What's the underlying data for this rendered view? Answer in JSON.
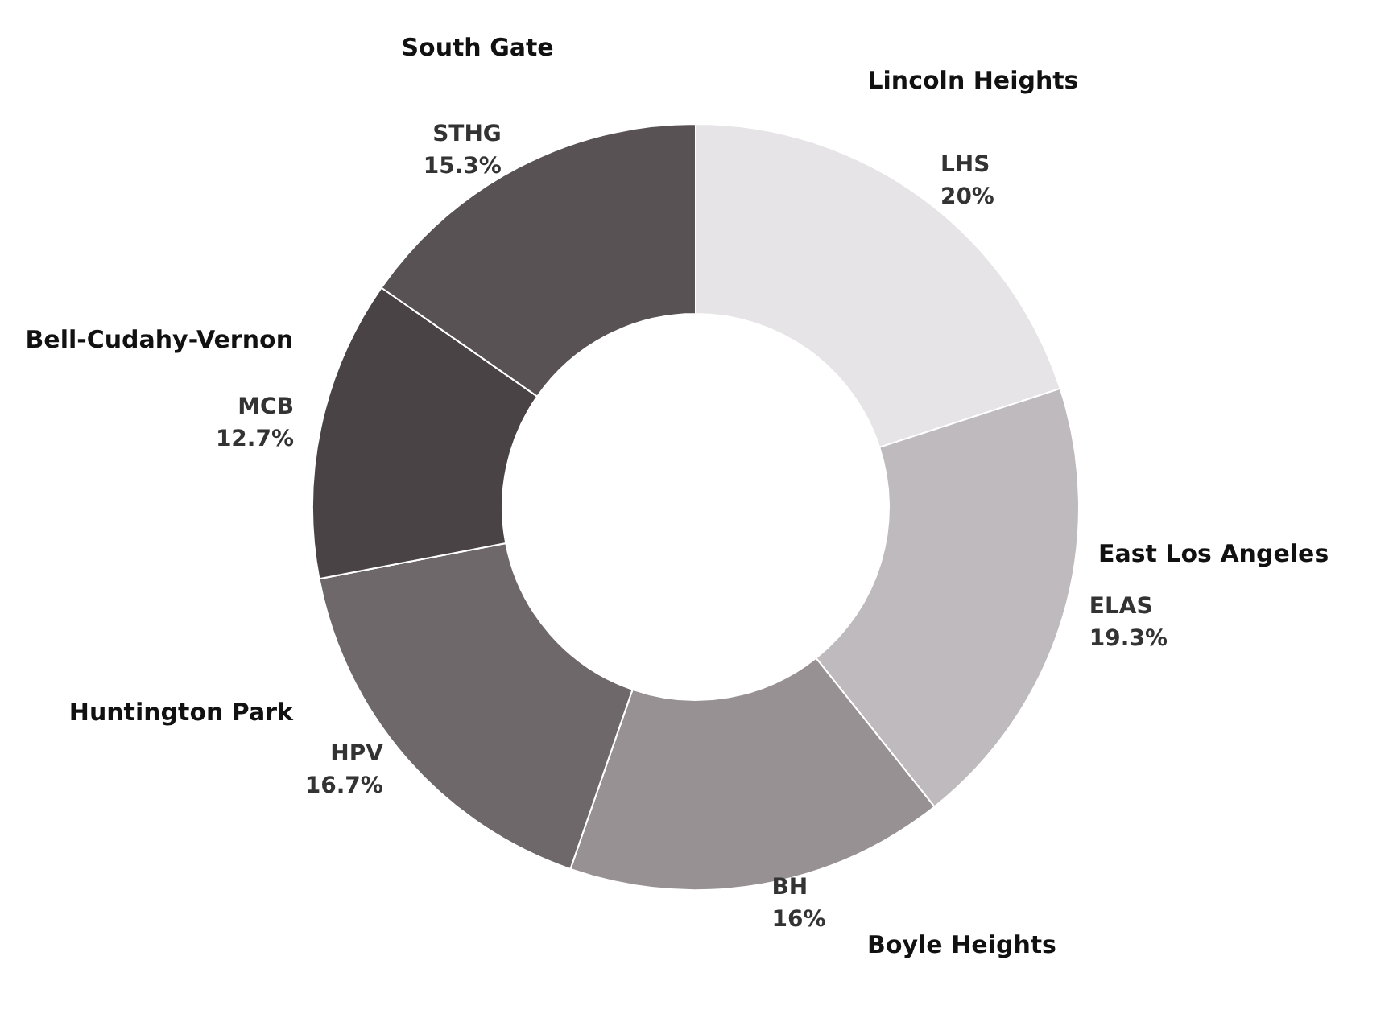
{
  "chart_data": {
    "type": "donut",
    "categories": [
      "LHS",
      "ELAS",
      "BH",
      "HPV",
      "MCB",
      "STHG"
    ],
    "values": [
      20,
      19.3,
      16,
      16.7,
      12.7,
      15.3
    ],
    "value_labels": [
      "20%",
      "19.3%",
      "16%",
      "16.7%",
      "12.7%",
      "15.3%"
    ],
    "colors": [
      "#e6e4e6",
      "#bfbabd",
      "#979194",
      "#6e686b",
      "#4a4346",
      "#595255"
    ],
    "annotations": [
      "Lincoln Heights",
      "East Los Angeles",
      "Boyle Heights",
      "Huntington Park",
      "Bell-Cudahy-Vernon",
      "South Gate"
    ],
    "legend": false
  }
}
